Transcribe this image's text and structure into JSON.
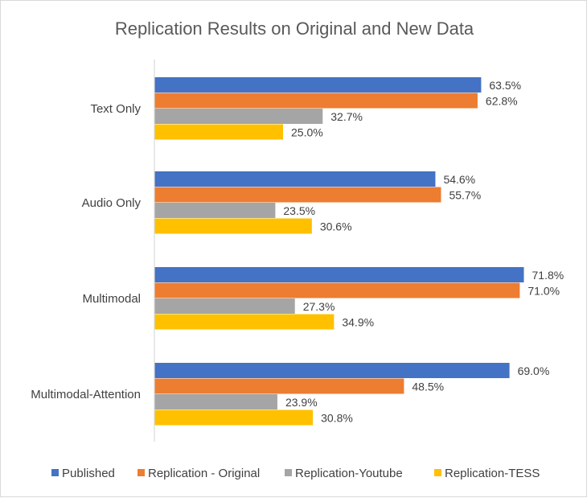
{
  "chart_data": {
    "type": "bar",
    "orientation": "horizontal",
    "title": "Replication Results on Original and New Data",
    "categories": [
      "Text Only",
      "Audio Only",
      "Multimodal",
      "Multimodal-Attention"
    ],
    "series": [
      {
        "name": "Published",
        "color": "#4472C4",
        "values": [
          63.5,
          54.6,
          71.8,
          69.0
        ],
        "labels": [
          "63.5%",
          "54.6%",
          "71.8%",
          "69.0%"
        ]
      },
      {
        "name": "Replication - Original",
        "color": "#ED7D31",
        "values": [
          62.8,
          55.7,
          71.0,
          48.5
        ],
        "labels": [
          "62.8%",
          "55.7%",
          "71.0%",
          "48.5%"
        ]
      },
      {
        "name": "Replication-Youtube",
        "color": "#A5A5A5",
        "values": [
          32.7,
          23.5,
          27.3,
          23.9
        ],
        "labels": [
          "32.7%",
          "23.5%",
          "27.3%",
          "23.9%"
        ]
      },
      {
        "name": "Replication-TESS",
        "color": "#FFC000",
        "values": [
          25.0,
          30.6,
          34.9,
          30.8
        ],
        "labels": [
          "25.0%",
          "30.6%",
          "34.9%",
          "30.8%"
        ]
      }
    ],
    "xlim": [
      0,
      80
    ],
    "grid": false,
    "legend": "bottom",
    "data_labels": true
  }
}
